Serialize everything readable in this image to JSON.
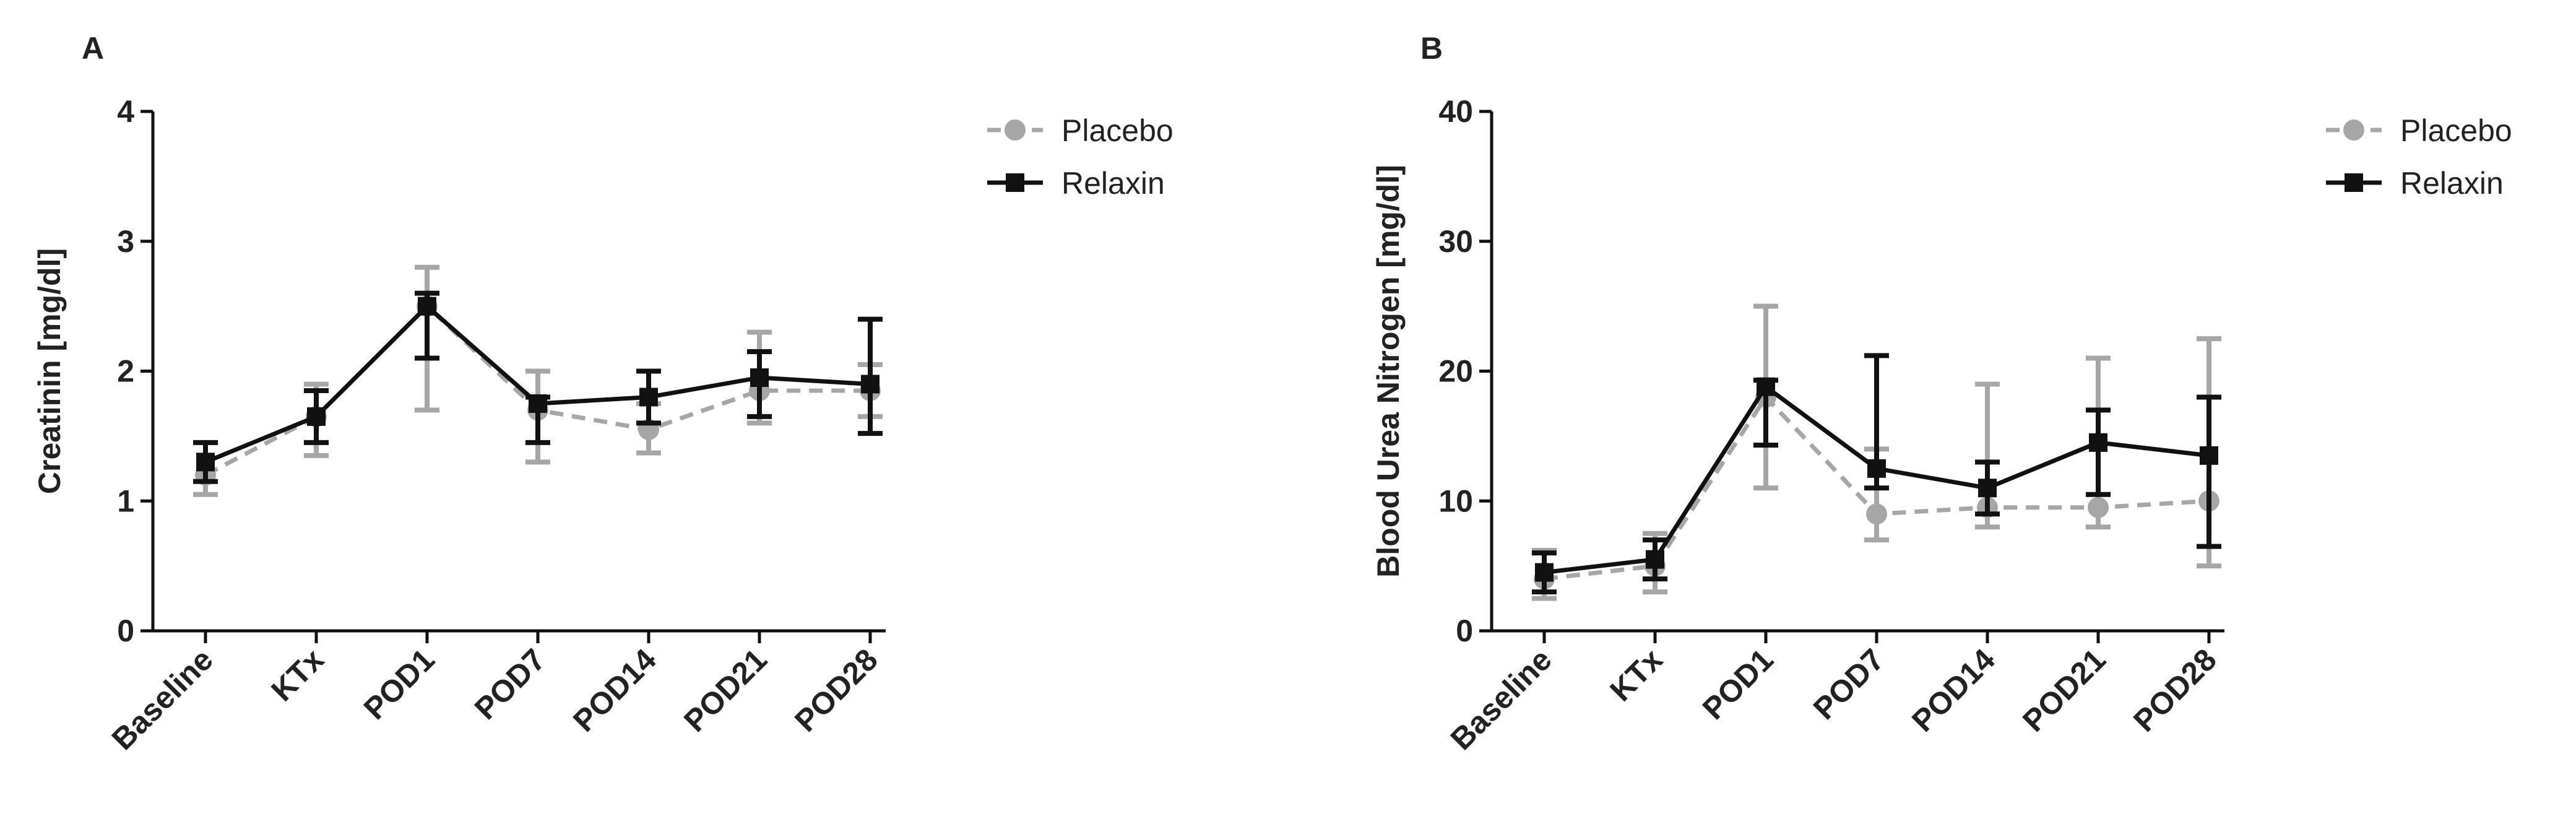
{
  "chart_data": [
    {
      "type": "line",
      "panel_label": "A",
      "y_label": "Creatinin [mg/dl]",
      "categories": [
        "Baseline",
        "KTx",
        "POD1",
        "POD7",
        "POD14",
        "POD21",
        "POD28"
      ],
      "ylim": [
        0,
        4
      ],
      "yticks": [
        0,
        1,
        2,
        3,
        4
      ],
      "series": [
        {
          "name": "Placebo",
          "color": "#a6a6a6",
          "dashed": true,
          "marker": "circle",
          "values": [
            1.2,
            1.65,
            2.5,
            1.7,
            1.55,
            1.85,
            1.85
          ],
          "errors_up": [
            0.25,
            0.25,
            0.3,
            0.3,
            0.2,
            0.45,
            0.2
          ],
          "errors_down": [
            0.15,
            0.3,
            0.8,
            0.4,
            0.18,
            0.25,
            0.2
          ]
        },
        {
          "name": "Relaxin",
          "color": "#111111",
          "dashed": false,
          "marker": "square",
          "values": [
            1.3,
            1.65,
            2.5,
            1.75,
            1.8,
            1.95,
            1.9
          ],
          "errors_up": [
            0.15,
            0.2,
            0.1,
            0.05,
            0.2,
            0.2,
            0.5
          ],
          "errors_down": [
            0.15,
            0.2,
            0.4,
            0.3,
            0.2,
            0.3,
            0.38
          ]
        }
      ]
    },
    {
      "type": "line",
      "panel_label": "B",
      "y_label": "Blood Urea Nitrogen [mg/dl]",
      "categories": [
        "Baseline",
        "KTx",
        "POD1",
        "POD7",
        "POD14",
        "POD21",
        "POD28"
      ],
      "ylim": [
        0,
        40
      ],
      "yticks": [
        0,
        10,
        20,
        30,
        40
      ],
      "series": [
        {
          "name": "Placebo",
          "color": "#a6a6a6",
          "dashed": true,
          "marker": "circle",
          "values": [
            4,
            5,
            18,
            9,
            9.5,
            9.5,
            10
          ],
          "errors_up": [
            2.2,
            2.5,
            7,
            5,
            9.5,
            11.5,
            12.5
          ],
          "errors_down": [
            1.5,
            2,
            7,
            2,
            1.5,
            1.5,
            5
          ]
        },
        {
          "name": "Relaxin",
          "color": "#111111",
          "dashed": false,
          "marker": "square",
          "values": [
            4.5,
            5.5,
            18.8,
            12.5,
            11,
            14.5,
            13.5
          ],
          "errors_up": [
            1.5,
            1.5,
            0.5,
            8.7,
            2,
            2.5,
            4.5
          ],
          "errors_down": [
            1.5,
            1.5,
            4.5,
            1.5,
            2,
            4,
            7
          ]
        }
      ]
    }
  ]
}
